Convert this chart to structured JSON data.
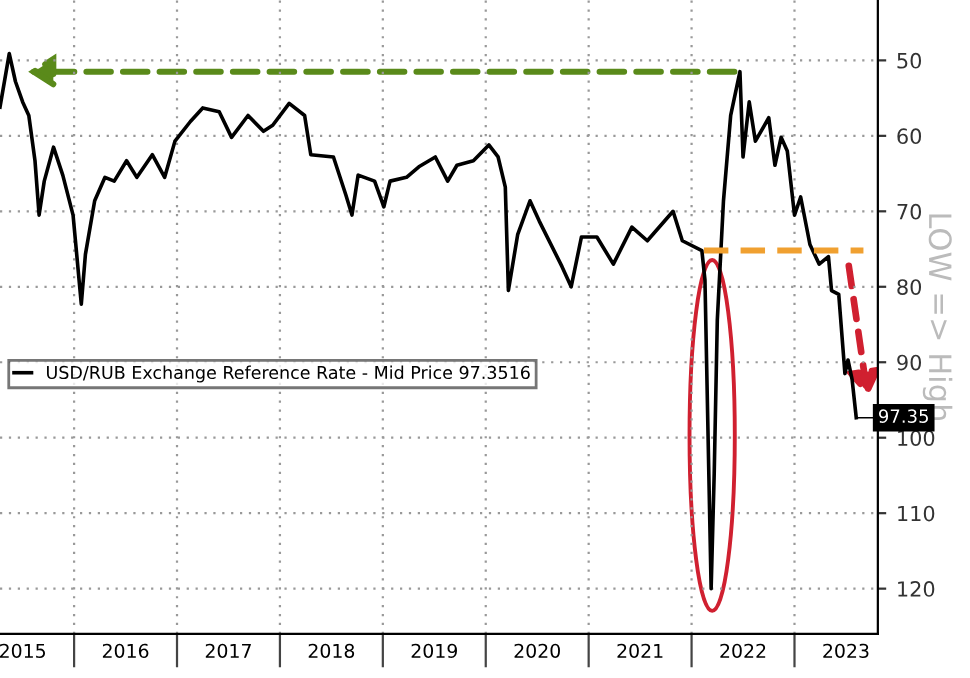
{
  "chart_data": {
    "type": "line",
    "ylabel": "LOW => High",
    "x": [
      2015.28,
      2015.37,
      2015.43,
      2015.5,
      2015.56,
      2015.62,
      2015.66,
      2015.71,
      2015.8,
      2015.89,
      2015.99,
      2016.07,
      2016.11,
      2016.2,
      2016.3,
      2016.39,
      2016.51,
      2016.61,
      2016.76,
      2016.88,
      2016.98,
      2017.13,
      2017.25,
      2017.41,
      2017.53,
      2017.69,
      2017.84,
      2017.93,
      2018.09,
      2018.24,
      2018.3,
      2018.52,
      2018.64,
      2018.7,
      2018.76,
      2018.92,
      2019.01,
      2019.07,
      2019.23,
      2019.35,
      2019.51,
      2019.63,
      2019.72,
      2019.88,
      2020.03,
      2020.12,
      2020.19,
      2020.22,
      2020.31,
      2020.43,
      2020.52,
      2020.74,
      2020.83,
      2020.93,
      2021.08,
      2021.24,
      2021.42,
      2021.57,
      2021.82,
      2021.91,
      2022.1,
      2022.13,
      2022.19,
      2022.22,
      2022.25,
      2022.31,
      2022.38,
      2022.47,
      2022.5,
      2022.56,
      2022.62,
      2022.75,
      2022.81,
      2022.87,
      2022.93,
      2023.0,
      2023.06,
      2023.15,
      2023.24,
      2023.33,
      2023.36,
      2023.43,
      2023.49,
      2023.52,
      2023.56,
      2023.6
    ],
    "series": [
      {
        "name": "USD/RUB Exchange Reference Rate - Mid Price 97.3516",
        "color": "#000000",
        "values": [
          56.2,
          49.1,
          52.8,
          55.5,
          57.3,
          63.3,
          70.5,
          66,
          61.5,
          65.2,
          70.5,
          82.3,
          75.7,
          68.6,
          65.5,
          66,
          63.3,
          65.5,
          62.5,
          65.5,
          60.7,
          58.1,
          56.3,
          56.8,
          60.2,
          57.3,
          59.4,
          58.6,
          55.7,
          57.3,
          62.5,
          62.8,
          67.8,
          70.5,
          65.2,
          66,
          69.4,
          66,
          65.5,
          64.1,
          62.8,
          66,
          63.9,
          63.3,
          61.2,
          62.8,
          66.8,
          80.5,
          73.1,
          68.6,
          71.3,
          77.3,
          80,
          73.4,
          73.4,
          77,
          72.1,
          73.9,
          70,
          73.9,
          75.2,
          79.1,
          120,
          104.7,
          84.4,
          68.6,
          57.3,
          51.5,
          62.8,
          55.5,
          60.7,
          57.6,
          63.9,
          60.2,
          62,
          70.5,
          68.1,
          74.4,
          77,
          76,
          80.5,
          81,
          91.5,
          89.7,
          92.3,
          97.35
        ]
      }
    ],
    "xlim": [
      2015.28,
      2023.81
    ],
    "xticks": [
      {
        "value": 2016,
        "label": null
      },
      {
        "value": 2017,
        "label": null
      },
      {
        "value": 2018,
        "label": null
      },
      {
        "value": 2019,
        "label": null
      },
      {
        "value": 2020,
        "label": null
      },
      {
        "value": 2021,
        "label": null
      },
      {
        "value": 2022,
        "label": null
      },
      {
        "value": 2023,
        "label": null
      },
      {
        "value": 2015.5,
        "label": "2015"
      },
      {
        "value": 2016.5,
        "label": "2016"
      },
      {
        "value": 2017.5,
        "label": "2017"
      },
      {
        "value": 2018.5,
        "label": "2018"
      },
      {
        "value": 2019.5,
        "label": "2019"
      },
      {
        "value": 2020.5,
        "label": "2020"
      },
      {
        "value": 2021.5,
        "label": "2021"
      },
      {
        "value": 2022.5,
        "label": "2022"
      },
      {
        "value": 2023.5,
        "label": "2023"
      }
    ],
    "ylim": [
      126,
      42
    ],
    "yticks": [
      50,
      60,
      70,
      80,
      90,
      100,
      110,
      120
    ],
    "ref_lines": [
      {
        "axis": "y",
        "value": 75.2,
        "color": "#f0a030",
        "line_style": "dashed"
      }
    ],
    "grid": true,
    "legend": "left",
    "line_style": "solid",
    "marker": "none",
    "annotations": [
      {
        "text": "97.35",
        "x": 2023.6,
        "y": 97.35
      }
    ]
  }
}
